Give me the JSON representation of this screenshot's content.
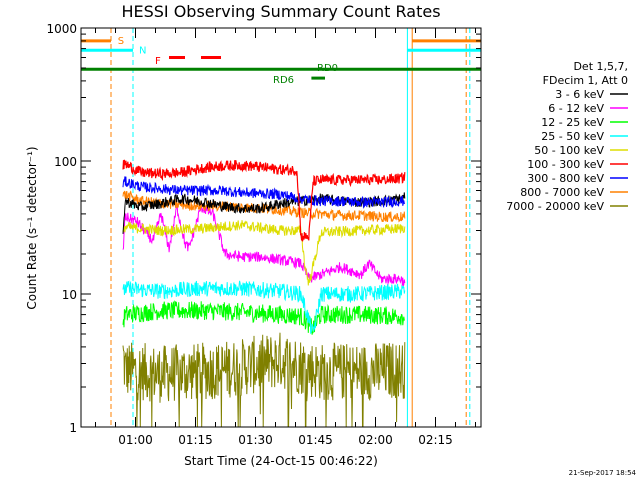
{
  "chart_data": {
    "type": "line",
    "title": "HESSI Observing Summary Count Rates",
    "xlabel": "Start Time (24-Oct-15 00:46:22)",
    "ylabel": "Count Rate (s⁻¹ detector⁻¹)",
    "yscale": "log",
    "ylim": [
      1,
      1000
    ],
    "xlim_minutes": [
      0,
      100
    ],
    "y_ticks": [
      "1",
      "10",
      "100",
      "1000"
    ],
    "y_tick_values": [
      1,
      10,
      100,
      1000
    ],
    "x_ticks": [
      "01:00",
      "01:15",
      "01:30",
      "01:45",
      "02:00",
      "02:15"
    ],
    "x_tick_minutes": [
      13.63,
      28.63,
      43.63,
      58.63,
      73.63,
      88.63
    ],
    "legend": {
      "header": [
        "Det 1,5,7,",
        "FDecim 1, Att 0"
      ],
      "placement": "right"
    },
    "series": [
      {
        "name": "3 - 6 keV",
        "color": "#000000",
        "t": [
          10.5,
          11,
          15,
          20,
          25,
          30,
          35,
          40,
          45,
          50,
          55,
          60,
          65,
          70,
          75,
          80,
          81
        ],
        "values": [
          26,
          50,
          45,
          48,
          52,
          50,
          46,
          44,
          44,
          48,
          50,
          52,
          50,
          49,
          50,
          52,
          54
        ]
      },
      {
        "name": "6 - 12 keV",
        "color": "#ff00ff",
        "t": [
          10.5,
          11,
          14,
          18,
          20,
          22,
          24,
          26,
          27,
          30,
          33,
          36,
          40,
          45,
          50,
          55,
          57,
          60,
          65,
          70,
          72,
          75,
          80,
          81
        ],
        "values": [
          20,
          38,
          35,
          25,
          40,
          22,
          45,
          24,
          22,
          45,
          40,
          20,
          19,
          19,
          18,
          17,
          13,
          14,
          16,
          14,
          17,
          13,
          13,
          12
        ]
      },
      {
        "name": "12 - 25 keV",
        "color": "#00ff00",
        "t": [
          10.5,
          11,
          20,
          30,
          40,
          50,
          55,
          58,
          60,
          70,
          80,
          81
        ],
        "values": [
          6,
          7,
          7.5,
          7.5,
          7.3,
          7,
          6.8,
          5.5,
          7,
          7,
          6.8,
          6.8
        ]
      },
      {
        "name": "25 - 50 keV",
        "color": "#00ffff",
        "t": [
          10.5,
          11,
          20,
          30,
          40,
          50,
          55,
          58,
          60,
          70,
          80,
          81
        ],
        "values": [
          10,
          11,
          10.5,
          11,
          11,
          10.5,
          10,
          5,
          10,
          10,
          10.5,
          10.5
        ]
      },
      {
        "name": "50 - 100 keV",
        "color": "#dddd00",
        "t": [
          10.5,
          11,
          20,
          30,
          40,
          50,
          55,
          56,
          57,
          60,
          70,
          80,
          81
        ],
        "values": [
          28,
          32,
          30,
          31,
          33,
          30,
          30,
          16,
          12,
          29,
          30,
          31,
          32
        ]
      },
      {
        "name": "100 - 300 keV",
        "color": "#ff0000",
        "t": [
          10.5,
          11,
          15,
          20,
          25,
          30,
          35,
          40,
          45,
          50,
          54,
          55,
          57,
          58,
          60,
          65,
          70,
          75,
          80,
          81
        ],
        "values": [
          92,
          95,
          82,
          80,
          82,
          88,
          92,
          93,
          90,
          86,
          85,
          27,
          27,
          70,
          72,
          72,
          72,
          72,
          74,
          76
        ]
      },
      {
        "name": "300 - 800 keV",
        "color": "#0000ff",
        "t": [
          10.5,
          11,
          15,
          20,
          25,
          30,
          35,
          40,
          45,
          50,
          55,
          60,
          65,
          70,
          75,
          80,
          81
        ],
        "values": [
          68,
          70,
          64,
          62,
          60,
          60,
          60,
          58,
          57,
          56,
          52,
          50,
          50,
          49,
          49,
          50,
          50
        ]
      },
      {
        "name": "800 - 7000 keV",
        "color": "#ff8000",
        "t": [
          10.5,
          11,
          15,
          20,
          25,
          30,
          35,
          40,
          45,
          50,
          55,
          60,
          65,
          70,
          75,
          80,
          81
        ],
        "values": [
          55,
          56,
          50,
          48,
          47,
          46,
          46,
          45,
          44,
          43,
          41,
          40,
          39,
          39,
          38,
          38,
          38
        ]
      },
      {
        "name": "7000 - 20000 keV",
        "color": "#808000",
        "t": [
          10.5,
          11,
          20,
          30,
          40,
          50,
          60,
          70,
          80,
          81
        ],
        "values": [
          3.5,
          2.7,
          2.5,
          2.6,
          2.8,
          3.2,
          2.6,
          2.6,
          2.7,
          2.7
        ]
      }
    ],
    "vertical_markers": [
      {
        "t": 7.5,
        "color": "#ff8000",
        "style": "dashed"
      },
      {
        "t": 13.0,
        "color": "#00ffff",
        "style": "dashed"
      },
      {
        "t": 81.6,
        "color": "#00ffff",
        "style": "solid"
      },
      {
        "t": 82.8,
        "color": "#ff8000",
        "style": "solid"
      },
      {
        "t": 96.3,
        "color": "#ff8000",
        "style": "dashed"
      },
      {
        "t": 97.2,
        "color": "#00ffff",
        "style": "dashed"
      }
    ],
    "flag_bars": [
      {
        "label": "S",
        "color": "#ff8000",
        "y": 800,
        "segments": [
          [
            0,
            7.5
          ],
          [
            82.8,
            100
          ]
        ],
        "label_t": 9.2,
        "label_y": 810
      },
      {
        "label": "N",
        "color": "#00ffff",
        "y": 680,
        "segments": [
          [
            0,
            13.0
          ],
          [
            81.6,
            100
          ]
        ],
        "label_t": 14.5,
        "label_y": 690
      },
      {
        "label": "F",
        "color": "#ff0000",
        "y": 600,
        "segments": [
          [
            22,
            26
          ],
          [
            30,
            35
          ]
        ],
        "label_t": 18.5,
        "label_y": 575
      },
      {
        "label": "RD0",
        "color": "#008000",
        "y": 490,
        "segments": [
          [
            0,
            100
          ]
        ],
        "label_t": 59,
        "label_y": 510
      },
      {
        "label": "RD6",
        "color": "#008000",
        "y": 420,
        "segments": [
          [
            57.6,
            61
          ]
        ],
        "label_t": 48,
        "label_y": 415
      }
    ],
    "annotation": "21-Sep-2017 18:54"
  }
}
